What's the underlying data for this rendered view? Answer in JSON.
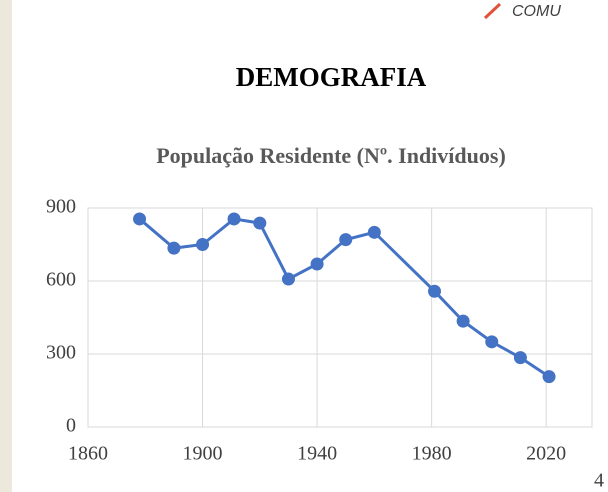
{
  "header": {
    "logo": "COMU",
    "title": "DEMOGRAFIA"
  },
  "page_number": "4",
  "chart_data": {
    "type": "line",
    "title": "População Residente (Nº. Indivíduos)",
    "x": [
      1878,
      1890,
      1900,
      1911,
      1920,
      1930,
      1940,
      1950,
      1960,
      1981,
      1991,
      2001,
      2011,
      2021
    ],
    "series": [
      {
        "color": "#4472c4",
        "values": [
          855,
          735,
          750,
          855,
          838,
          608,
          670,
          770,
          800,
          558,
          435,
          350,
          285,
          207
        ]
      }
    ],
    "xlim": [
      1860,
      2036
    ],
    "xticks": [
      1860,
      1900,
      1940,
      1980,
      2020
    ],
    "ylim": [
      0,
      900
    ],
    "yticks": [
      0,
      300,
      600,
      900
    ],
    "grid": true
  }
}
